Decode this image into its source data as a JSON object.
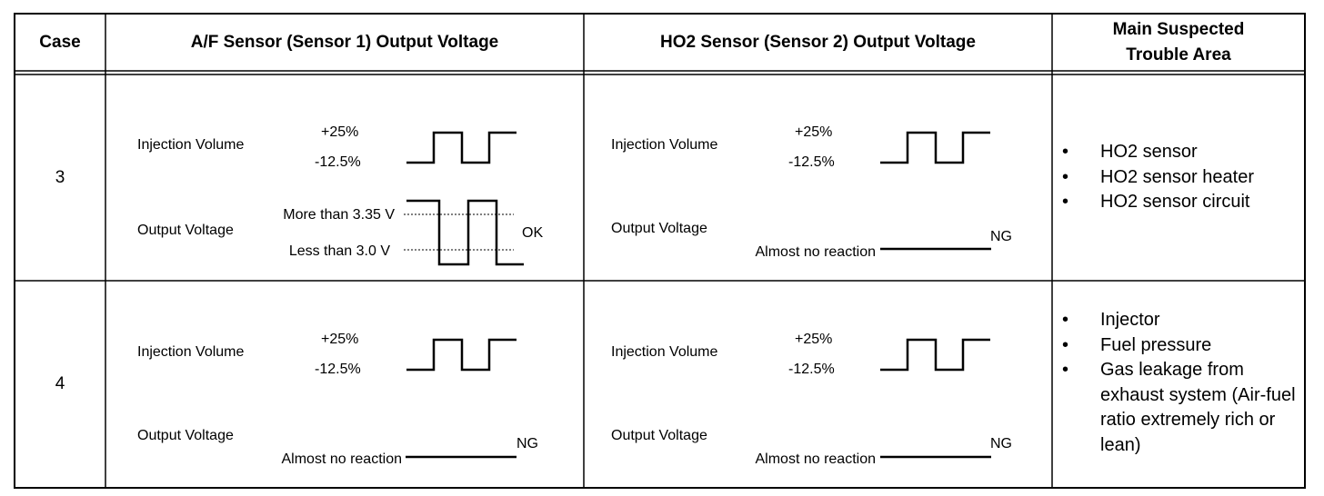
{
  "header": {
    "case": "Case",
    "af_sensor": "A/F Sensor (Sensor 1) Output Voltage",
    "ho2_sensor": "HO2 Sensor (Sensor 2) Output Voltage",
    "trouble_area_line1": "Main Suspected",
    "trouble_area_line2": "Trouble Area"
  },
  "rows": [
    {
      "case": "3",
      "af": {
        "injection_label": "Injection Volume",
        "inj_high": "+25%",
        "inj_low": "-12.5%",
        "output_label": "Output Voltage",
        "level_high": "More than 3.35 V",
        "level_low": "Less than 3.0 V",
        "result": "OK"
      },
      "ho2": {
        "injection_label": "Injection Volume",
        "inj_high": "+25%",
        "inj_low": "-12.5%",
        "output_label": "Output Voltage",
        "no_reaction": "Almost no reaction",
        "result": "NG"
      },
      "trouble": [
        "HO2 sensor",
        "HO2 sensor heater",
        "HO2 sensor circuit"
      ]
    },
    {
      "case": "4",
      "af": {
        "injection_label": "Injection Volume",
        "inj_high": "+25%",
        "inj_low": "-12.5%",
        "output_label": "Output Voltage",
        "no_reaction": "Almost no reaction",
        "result": "NG"
      },
      "ho2": {
        "injection_label": "Injection Volume",
        "inj_high": "+25%",
        "inj_low": "-12.5%",
        "output_label": "Output Voltage",
        "no_reaction": "Almost no reaction",
        "result": "NG"
      },
      "trouble": [
        "Injector",
        "Fuel pressure",
        "Gas leakage from exhaust system (Air-fuel ratio extremely rich or lean)"
      ]
    }
  ]
}
